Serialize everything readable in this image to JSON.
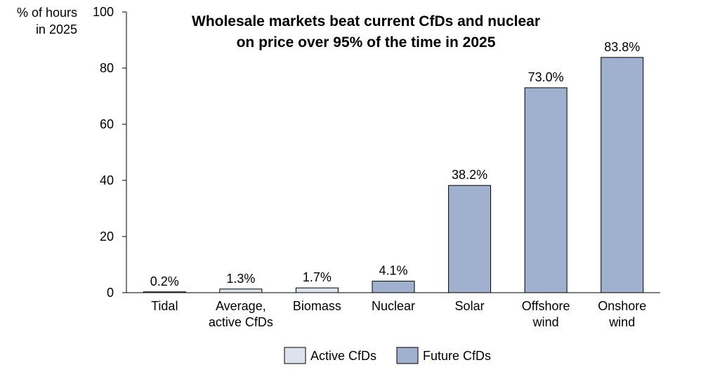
{
  "chart_data": {
    "type": "bar",
    "title_lines": [
      "Wholesale markets beat current CfDs and nuclear",
      "on price over 95% of the time in 2025"
    ],
    "ylabel_lines": [
      "% of hours",
      "in 2025"
    ],
    "xlabel": "",
    "ylim": [
      0,
      100
    ],
    "yticks": [
      0,
      20,
      40,
      60,
      80,
      100
    ],
    "categories": [
      [
        "Tidal"
      ],
      [
        "Average,",
        "active CfDs"
      ],
      [
        "Biomass"
      ],
      [
        "Nuclear"
      ],
      [
        "Solar"
      ],
      [
        "Offshore",
        "wind"
      ],
      [
        "Onshore",
        "wind"
      ]
    ],
    "values": [
      0.2,
      1.3,
      1.7,
      4.1,
      38.2,
      73.0,
      83.8
    ],
    "value_labels": [
      "0.2%",
      "1.3%",
      "1.7%",
      "4.1%",
      "38.2%",
      "73.0%",
      "83.8%"
    ],
    "group": [
      "active",
      "active",
      "active",
      "future",
      "future",
      "future",
      "future"
    ],
    "legend": [
      {
        "key": "active",
        "label": "Active CfDs",
        "color": "#dde3ed"
      },
      {
        "key": "future",
        "label": "Future CfDs",
        "color": "#9fb1ce"
      }
    ],
    "legend_position": "bottom-center",
    "grid": false
  }
}
